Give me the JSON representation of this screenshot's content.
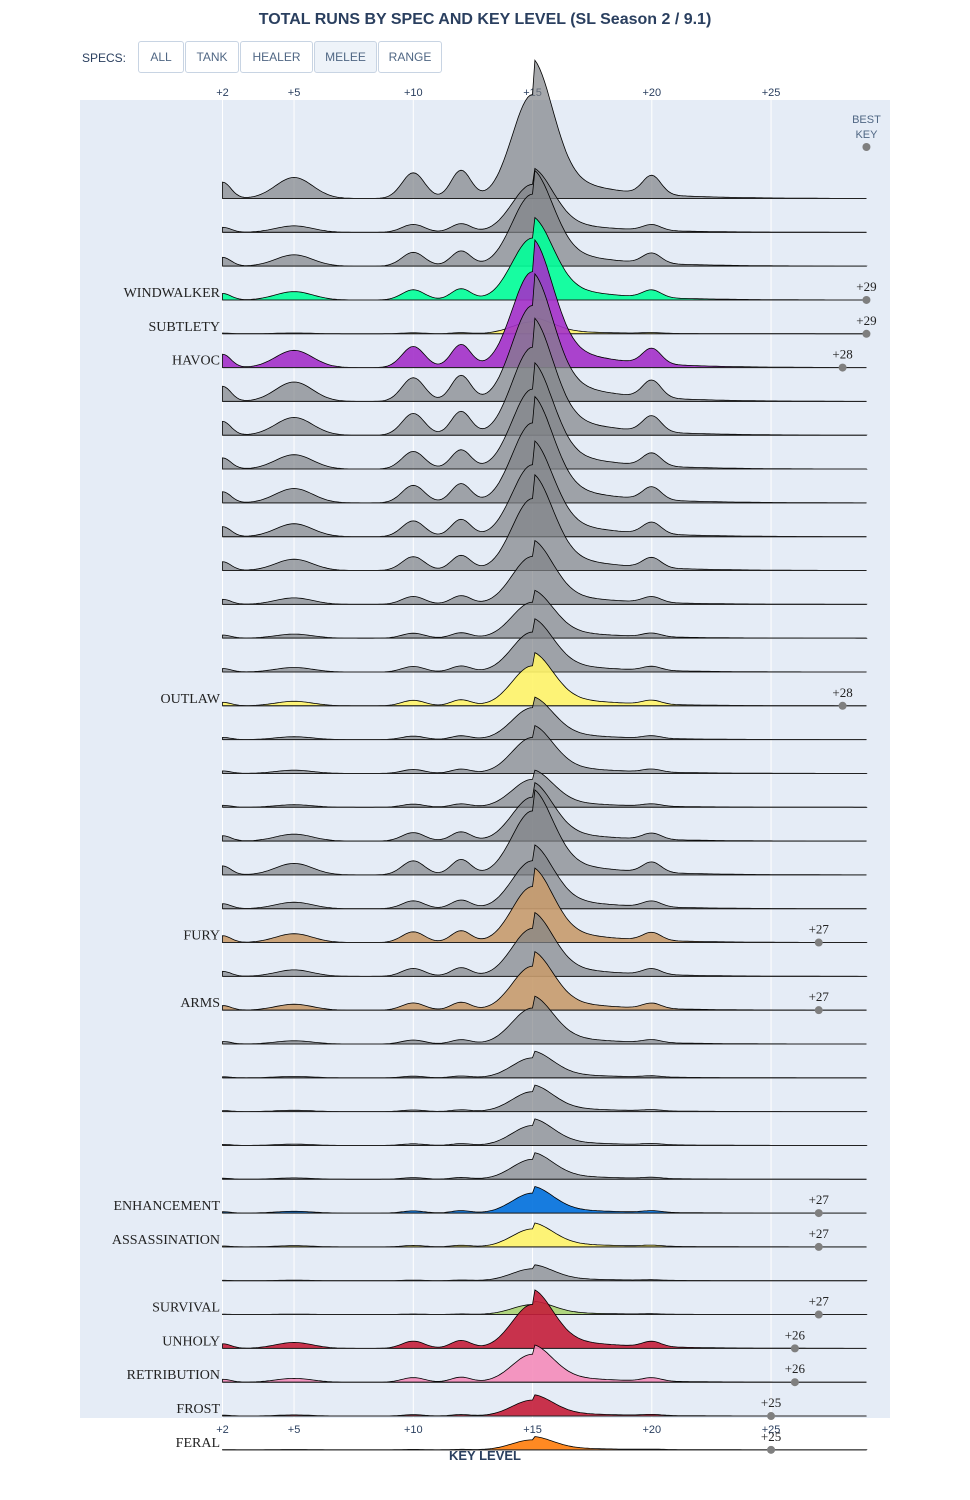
{
  "title": "TOTAL RUNS BY SPEC AND KEY LEVEL (SL Season 2 / 9.1)",
  "specs_label": "SPECS:",
  "buttons": [
    "ALL",
    "TANK",
    "HEALER",
    "MELEE",
    "RANGE"
  ],
  "active_button": "MELEE",
  "best_key_label": [
    "BEST",
    "KEY"
  ],
  "colors": {
    "plot_bg": "#e5ecf6",
    "grey_fill": "#808387",
    "marker": "#7f7f7f"
  },
  "chart_data": {
    "type": "area",
    "subtype": "ridgeline",
    "title": "TOTAL RUNS BY SPEC AND KEY LEVEL (SL Season 2 / 9.1)",
    "xlabel": "KEY LEVEL",
    "ylabel": "",
    "xlim": [
      2,
      29
    ],
    "x_ticks": [
      2,
      5,
      10,
      15,
      20,
      25
    ],
    "x_tick_labels": [
      "+2",
      "+5",
      "+10",
      "+15",
      "+20",
      "+25"
    ],
    "legend": "none",
    "grid": true,
    "highlighted_specs": [
      {
        "name": "WINDWALKER",
        "best_key": 29,
        "best_key_label": "+29",
        "color": "#00ff98",
        "amplitude": 1.55,
        "shoulder": 0.3
      },
      {
        "name": "SUBTLETY",
        "best_key": 29,
        "best_key_label": "+29",
        "color": "#fff468",
        "amplitude": 0.3,
        "shoulder": 0.15
      },
      {
        "name": "HAVOC",
        "best_key": 28,
        "best_key_label": "+28",
        "color": "#a330c9",
        "amplitude": 2.4,
        "shoulder": 0.4
      },
      {
        "name": "OUTLAW",
        "best_key": 28,
        "best_key_label": "+28",
        "color": "#fff468",
        "amplitude": 1.0,
        "shoulder": 0.25
      },
      {
        "name": "FURY",
        "best_key": 27,
        "best_key_label": "+27",
        "color": "#c69b6d",
        "amplitude": 1.4,
        "shoulder": 0.35
      },
      {
        "name": "ARMS",
        "best_key": 27,
        "best_key_label": "+27",
        "color": "#c69b6d",
        "amplitude": 1.1,
        "shoulder": 0.3
      },
      {
        "name": "ENHANCEMENT",
        "best_key": 27,
        "best_key_label": "+27",
        "color": "#0070dd",
        "amplitude": 0.5,
        "shoulder": 0.2
      },
      {
        "name": "ASSASSINATION",
        "best_key": 27,
        "best_key_label": "+27",
        "color": "#fff468",
        "amplitude": 0.45,
        "shoulder": 0.15
      },
      {
        "name": "SURVIVAL",
        "best_key": 27,
        "best_key_label": "+27",
        "color": "#aad372",
        "amplitude": 0.25,
        "shoulder": 0.1
      },
      {
        "name": "UNHOLY",
        "best_key": 26,
        "best_key_label": "+26",
        "color": "#c41e3a",
        "amplitude": 1.1,
        "shoulder": 0.3
      },
      {
        "name": "RETRIBUTION",
        "best_key": 26,
        "best_key_label": "+26",
        "color": "#f48cba",
        "amplitude": 0.7,
        "shoulder": 0.3
      },
      {
        "name": "FROST",
        "best_key": 25,
        "best_key_label": "+25",
        "color": "#c41e3a",
        "amplitude": 0.4,
        "shoulder": 0.15
      },
      {
        "name": "FERAL",
        "best_key": 25,
        "best_key_label": "+25",
        "color": "#ff7c0a",
        "amplitude": 0.25,
        "shoulder": 0.08
      }
    ],
    "rows_top_to_bottom": [
      {
        "name": "",
        "amplitude": 2.6,
        "shoulder": 0.45
      },
      {
        "name": "",
        "amplitude": 1.2,
        "shoulder": 0.3
      },
      {
        "name": "",
        "amplitude": 1.8,
        "shoulder": 0.35
      },
      {
        "name": "WINDWALKER"
      },
      {
        "name": "SUBTLETY"
      },
      {
        "name": "HAVOC"
      },
      {
        "name": "",
        "amplitude": 2.4,
        "shoulder": 0.45
      },
      {
        "name": "",
        "amplitude": 2.2,
        "shoulder": 0.45
      },
      {
        "name": "",
        "amplitude": 2.0,
        "shoulder": 0.4
      },
      {
        "name": "",
        "amplitude": 2.0,
        "shoulder": 0.4
      },
      {
        "name": "",
        "amplitude": 1.8,
        "shoulder": 0.4
      },
      {
        "name": "",
        "amplitude": 1.8,
        "shoulder": 0.35
      },
      {
        "name": "",
        "amplitude": 1.2,
        "shoulder": 0.3
      },
      {
        "name": "",
        "amplitude": 0.9,
        "shoulder": 0.25
      },
      {
        "name": "",
        "amplitude": 1.0,
        "shoulder": 0.25
      },
      {
        "name": "OUTLAW"
      },
      {
        "name": "",
        "amplitude": 0.8,
        "shoulder": 0.2
      },
      {
        "name": "",
        "amplitude": 0.9,
        "shoulder": 0.2
      },
      {
        "name": "",
        "amplitude": 0.7,
        "shoulder": 0.2
      },
      {
        "name": "",
        "amplitude": 1.1,
        "shoulder": 0.35
      },
      {
        "name": "",
        "amplitude": 1.6,
        "shoulder": 0.4
      },
      {
        "name": "",
        "amplitude": 1.2,
        "shoulder": 0.3
      },
      {
        "name": "FURY"
      },
      {
        "name": "",
        "amplitude": 1.2,
        "shoulder": 0.3
      },
      {
        "name": "ARMS"
      },
      {
        "name": "",
        "amplitude": 0.9,
        "shoulder": 0.2
      },
      {
        "name": "",
        "amplitude": 0.5,
        "shoulder": 0.15
      },
      {
        "name": "",
        "amplitude": 0.5,
        "shoulder": 0.15
      },
      {
        "name": "",
        "amplitude": 0.5,
        "shoulder": 0.15
      },
      {
        "name": "",
        "amplitude": 0.5,
        "shoulder": 0.15
      },
      {
        "name": "ENHANCEMENT"
      },
      {
        "name": "ASSASSINATION"
      },
      {
        "name": "",
        "amplitude": 0.3,
        "shoulder": 0.1
      },
      {
        "name": "SURVIVAL"
      },
      {
        "name": "UNHOLY"
      },
      {
        "name": "RETRIBUTION"
      },
      {
        "name": "FROST"
      },
      {
        "name": "FERAL"
      }
    ]
  }
}
